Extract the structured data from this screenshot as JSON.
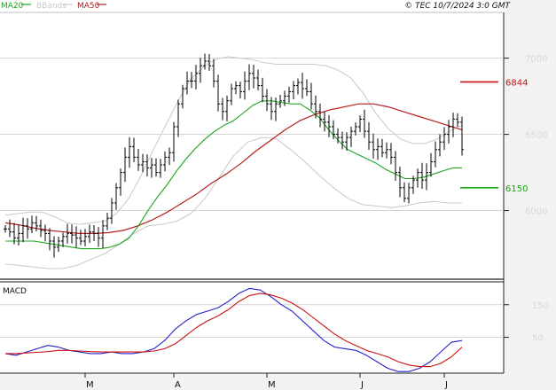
{
  "header": {
    "legend": [
      {
        "label": "MA20",
        "color": "#1ea51e"
      },
      {
        "label": "BBands",
        "color": "#c8c8c8"
      },
      {
        "label": "MA50",
        "color": "#b41e1e"
      }
    ],
    "copyright": "© TEC 10/7/2024 3:0 GMT"
  },
  "colors": {
    "candle": "#000000",
    "ma20": "#1ea51e",
    "ma50": "#b41e1e",
    "bbands": "#c8c8c8",
    "macd": "#2222cc",
    "signal": "#cc1111",
    "grid": "#c9c9c9",
    "axis_text": "#d8d8d8",
    "panel_bg": "#ffffff",
    "gutter_bg": "#f2f2f2"
  },
  "chart_data": {
    "type": "ohlc",
    "n": 104,
    "price_axis": {
      "ylim": [
        5550,
        7300
      ],
      "ticks": [
        6000,
        6500,
        7000
      ],
      "tick_labels": [
        "6000",
        "6500",
        "7000"
      ]
    },
    "x_ticks": [
      {
        "index": 18,
        "label": "M"
      },
      {
        "index": 38,
        "label": "A"
      },
      {
        "index": 59,
        "label": "M"
      },
      {
        "index": 80,
        "label": "J"
      },
      {
        "index": 99,
        "label": "J"
      }
    ],
    "levels": [
      {
        "name": "resistance",
        "value": 6844,
        "label": "6844",
        "color": "#cc1111"
      },
      {
        "name": "support",
        "value": 6150,
        "label": "6150",
        "color": "#11aa11"
      }
    ],
    "close": [
      5880,
      5860,
      5820,
      5850,
      5900,
      5880,
      5920,
      5900,
      5870,
      5850,
      5800,
      5760,
      5800,
      5830,
      5850,
      5840,
      5820,
      5800,
      5830,
      5860,
      5850,
      5820,
      5900,
      5950,
      6050,
      6150,
      6250,
      6350,
      6420,
      6350,
      6300,
      6320,
      6280,
      6300,
      6250,
      6300,
      6350,
      6380,
      6550,
      6700,
      6800,
      6850,
      6850,
      6900,
      6950,
      6980,
      6950,
      6850,
      6700,
      6650,
      6720,
      6800,
      6820,
      6780,
      6850,
      6900,
      6870,
      6820,
      6750,
      6700,
      6650,
      6700,
      6720,
      6750,
      6780,
      6820,
      6840,
      6800,
      6780,
      6700,
      6650,
      6600,
      6580,
      6550,
      6500,
      6480,
      6450,
      6480,
      6520,
      6550,
      6600,
      6520,
      6450,
      6400,
      6420,
      6380,
      6400,
      6350,
      6250,
      6150,
      6080,
      6150,
      6200,
      6250,
      6200,
      6250,
      6320,
      6400,
      6450,
      6500,
      6550,
      6600,
      6580,
      6400
    ],
    "ma20": [
      5800,
      5800,
      5800,
      5800,
      5790,
      5780,
      5770,
      5760,
      5750,
      5750,
      5750,
      5760,
      5780,
      5820,
      5900,
      6000,
      6090,
      6170,
      6260,
      6340,
      6410,
      6470,
      6520,
      6560,
      6590,
      6640,
      6690,
      6720,
      6720,
      6710,
      6700,
      6700,
      6660,
      6610,
      6530,
      6460,
      6400,
      6370,
      6340,
      6310,
      6270,
      6240,
      6210,
      6210,
      6220,
      6240,
      6260,
      6280,
      6280
    ],
    "ma50": [
      5920,
      5905,
      5885,
      5870,
      5860,
      5850,
      5850,
      5855,
      5870,
      5900,
      5940,
      5990,
      6050,
      6110,
      6180,
      6240,
      6310,
      6390,
      6460,
      6530,
      6590,
      6630,
      6660,
      6680,
      6700,
      6700,
      6680,
      6650,
      6620,
      6590,
      6560,
      6530
    ],
    "bb_upper": [
      5970,
      5980,
      5990,
      5990,
      5960,
      5920,
      5910,
      5920,
      5930,
      5980,
      6080,
      6230,
      6400,
      6560,
      6720,
      6860,
      6940,
      6990,
      7010,
      7000,
      6990,
      6970,
      6960,
      6960,
      6960,
      6960,
      6950,
      6920,
      6870,
      6770,
      6640,
      6540,
      6470,
      6440,
      6440,
      6470,
      6520,
      6560
    ],
    "bb_lower": [
      5650,
      5640,
      5630,
      5620,
      5620,
      5640,
      5680,
      5720,
      5780,
      5850,
      5900,
      5910,
      5930,
      5980,
      6080,
      6220,
      6360,
      6450,
      6480,
      6470,
      6400,
      6320,
      6230,
      6150,
      6080,
      6040,
      6030,
      6020,
      6030,
      6050,
      6060,
      6050,
      6050
    ],
    "macd_panel": {
      "title": "MACD",
      "ylim": [
        -60,
        220
      ],
      "ticks": [
        50,
        150
      ],
      "tick_labels": [
        "50",
        "150"
      ],
      "macd": [
        0,
        -5,
        5,
        15,
        25,
        20,
        10,
        5,
        0,
        0,
        5,
        0,
        0,
        5,
        15,
        40,
        75,
        100,
        120,
        130,
        140,
        160,
        185,
        200,
        195,
        175,
        150,
        130,
        100,
        70,
        40,
        20,
        15,
        10,
        -5,
        -25,
        -45,
        -55,
        -55,
        -45,
        -25,
        5,
        35,
        40
      ],
      "signal": [
        0,
        0,
        2,
        4,
        6,
        10,
        10,
        8,
        6,
        5,
        5,
        5,
        5,
        5,
        8,
        15,
        30,
        55,
        80,
        100,
        115,
        135,
        160,
        178,
        185,
        180,
        170,
        155,
        135,
        110,
        85,
        60,
        40,
        25,
        10,
        0,
        -10,
        -25,
        -35,
        -40,
        -40,
        -30,
        -10,
        20
      ]
    }
  }
}
